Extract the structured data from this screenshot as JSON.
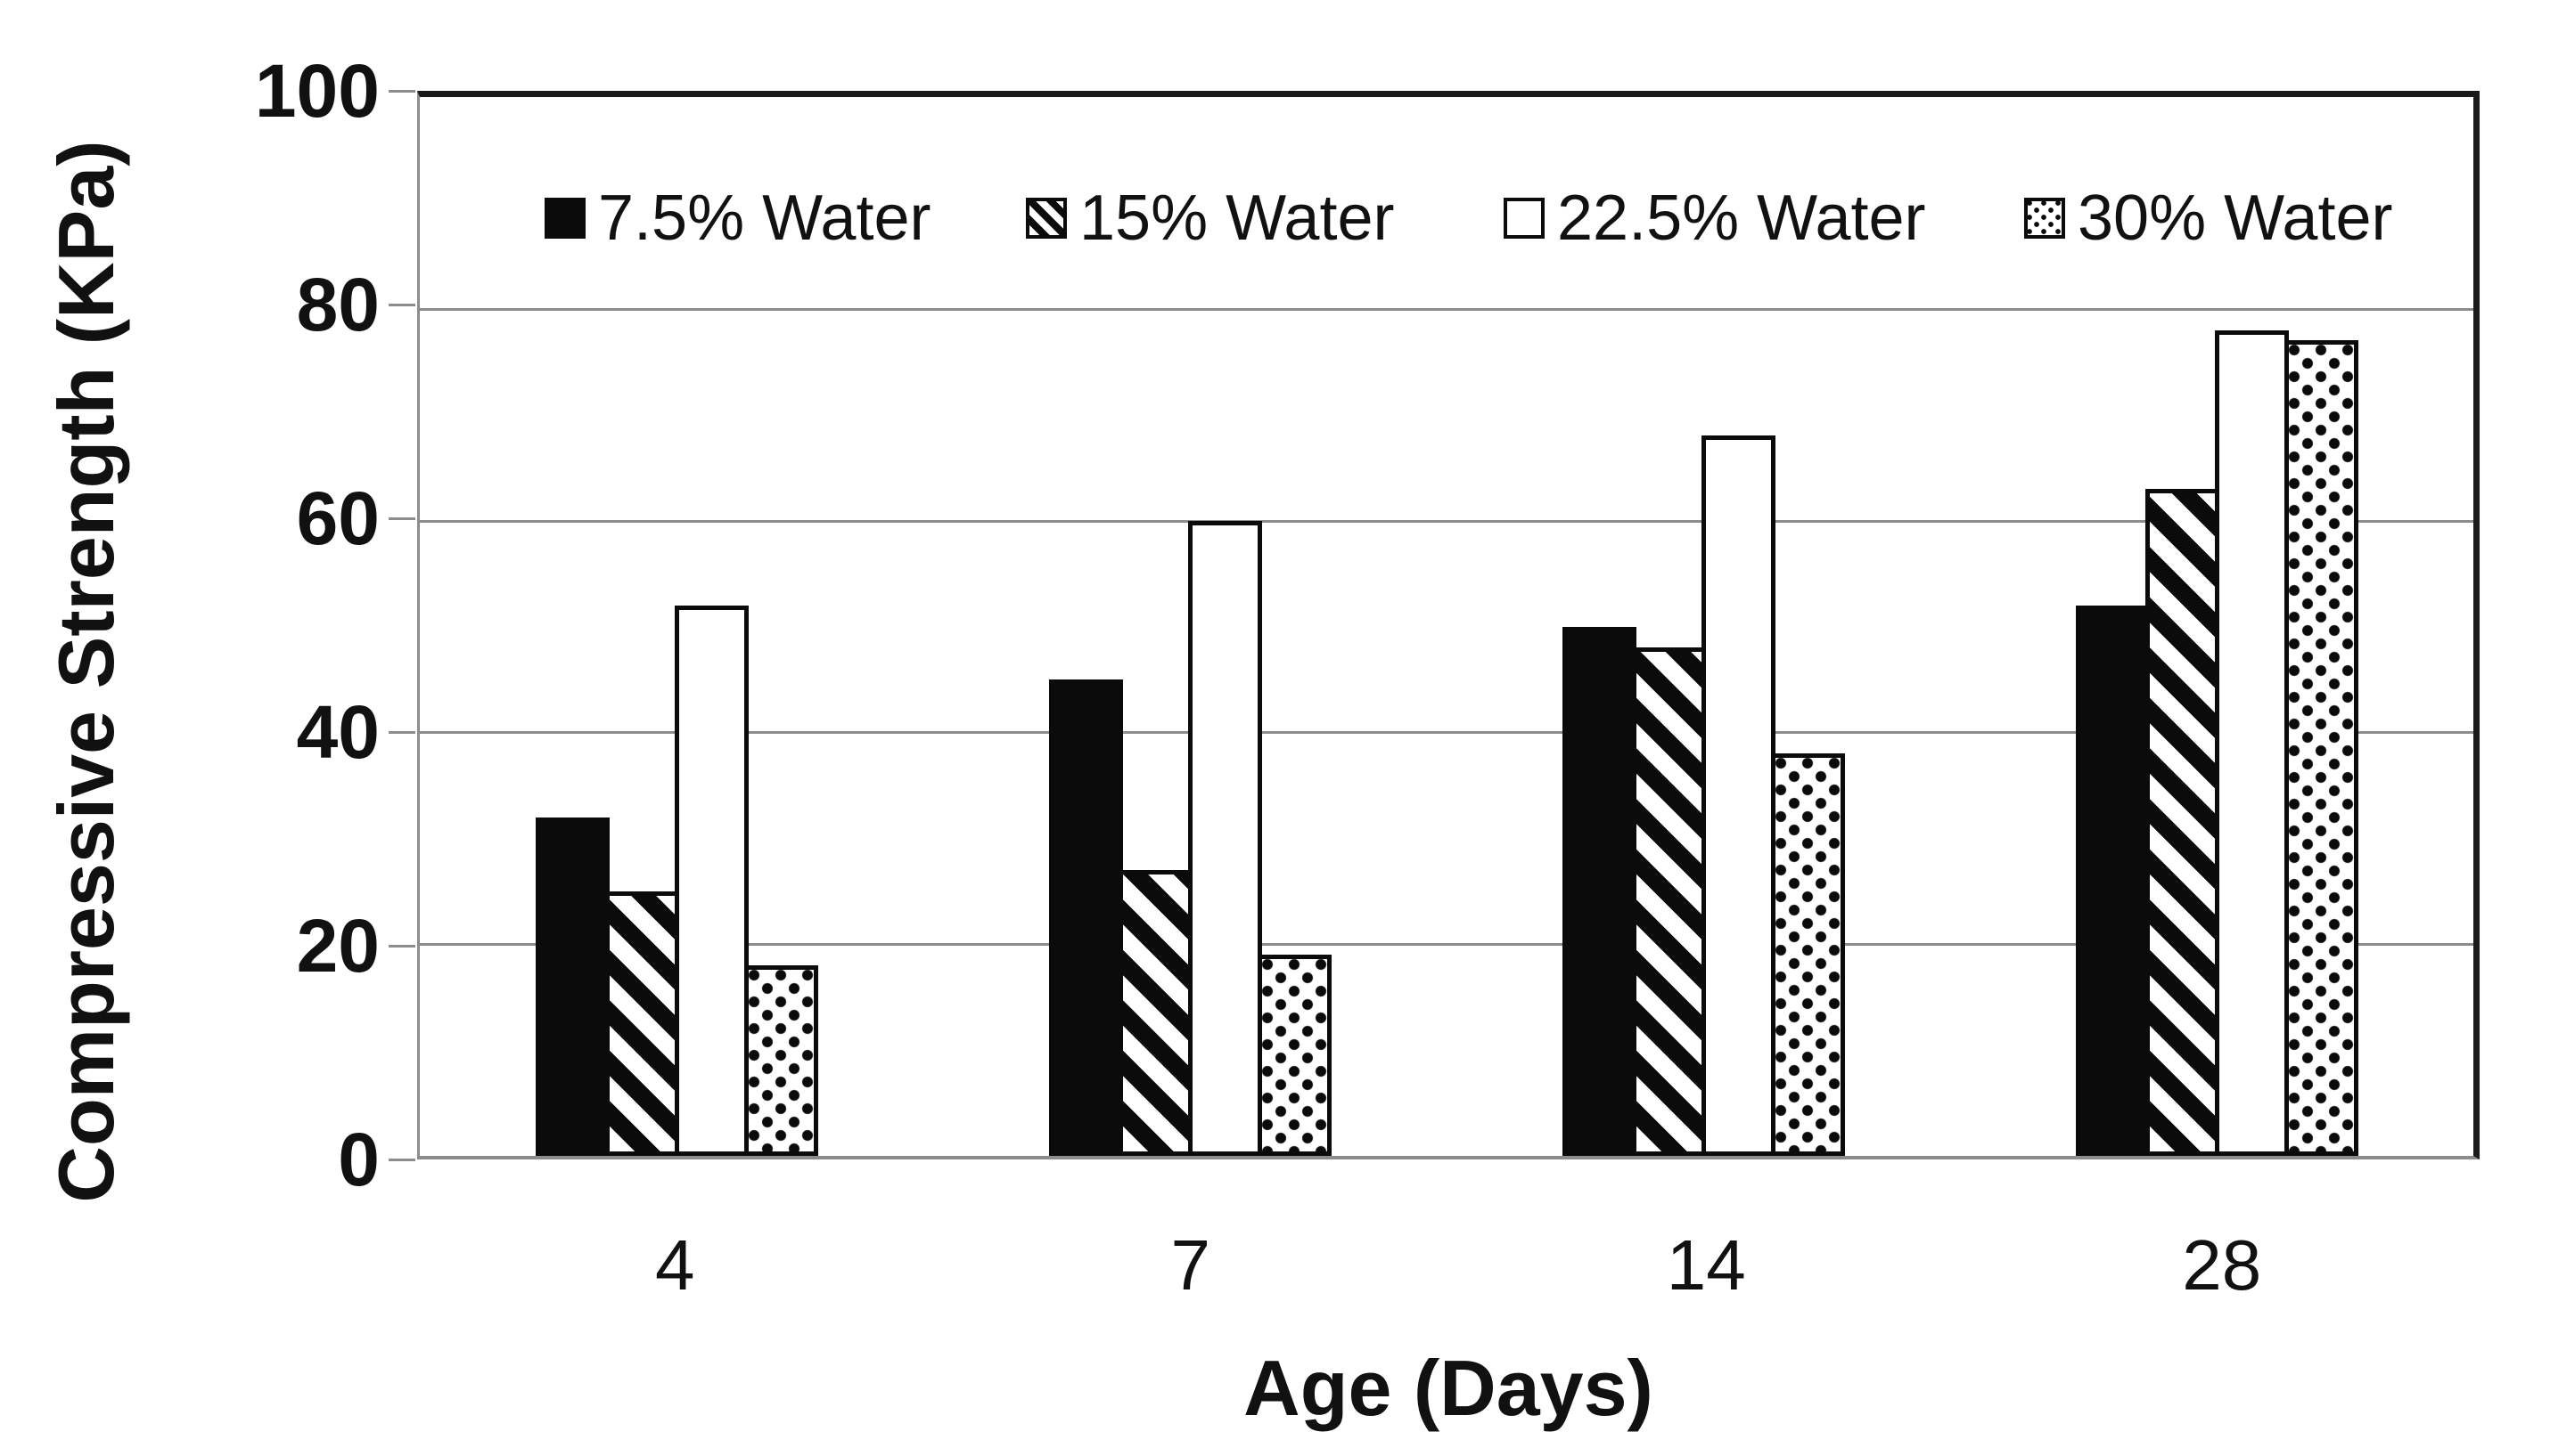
{
  "chart_data": {
    "type": "bar",
    "xlabel": "Age (Days)",
    "ylabel": "Compressive Strength (KPa)",
    "categories": [
      "4",
      "7",
      "14",
      "28"
    ],
    "series": [
      {
        "name": "7.5% Water",
        "pattern": "solid-black",
        "values": [
          32,
          45,
          50,
          52
        ]
      },
      {
        "name": "15% Water",
        "pattern": "diagonal-stripes",
        "values": [
          25,
          27,
          48,
          63
        ]
      },
      {
        "name": "22.5% Water",
        "pattern": "white",
        "values": [
          52,
          60,
          68,
          78
        ]
      },
      {
        "name": "30% Water",
        "pattern": "dots",
        "values": [
          18,
          19,
          38,
          77
        ]
      }
    ],
    "ylim": [
      0,
      100
    ],
    "yticks": [
      0,
      20,
      40,
      60,
      80,
      100
    ],
    "grid": "horizontal",
    "legend_position": "top-inside"
  },
  "colors": {
    "bar_stroke": "#0b0b0b",
    "gridline": "#8c8c8c",
    "border": "#1a1a1a",
    "text": "#111111",
    "background": "#ffffff"
  }
}
